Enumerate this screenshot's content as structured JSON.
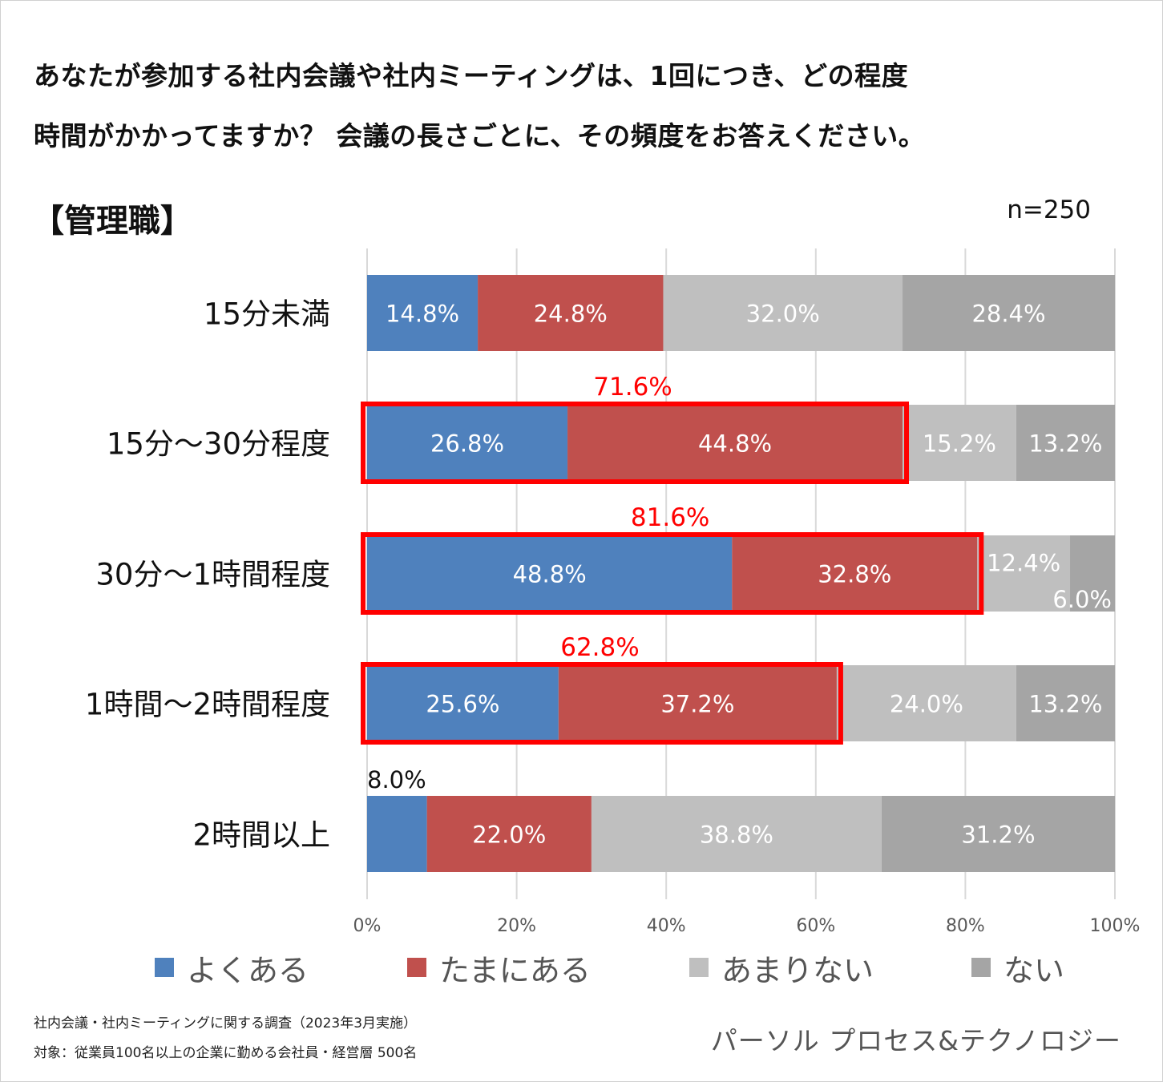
{
  "title": {
    "line1": "あなたが参加する社内会議や社内ミーティングは、1回につき、どの程度",
    "line2": "時間がかかってますか？ 会議の長さごとに、その頻度をお答えください。"
  },
  "segment_label": "【管理職】",
  "sample_size": "n=250",
  "colors": {
    "often": "#4f81bd",
    "sometimes": "#c0504d",
    "rarely": "#bfbfbf",
    "never": "#a5a5a5",
    "highlight": "#ff0000",
    "grid": "#d9d9d9"
  },
  "chart_data": {
    "type": "bar",
    "orientation": "horizontal",
    "stacked": true,
    "categories": [
      "15分未満",
      "15分～30分程度",
      "30分～1時間程度",
      "1時間～2時間程度",
      "2時間以上"
    ],
    "series": [
      {
        "name": "よくある",
        "values": [
          14.8,
          26.8,
          48.8,
          25.6,
          8.0
        ]
      },
      {
        "name": "たまにある",
        "values": [
          24.8,
          44.8,
          32.8,
          37.2,
          22.0
        ]
      },
      {
        "name": "あまりない",
        "values": [
          32.0,
          15.2,
          12.4,
          24.0,
          38.8
        ]
      },
      {
        "name": "ない",
        "values": [
          28.4,
          13.2,
          6.0,
          13.2,
          31.2
        ]
      }
    ],
    "highlights": [
      {
        "category": "15分～30分程度",
        "total": "71.6%"
      },
      {
        "category": "30分～1時間程度",
        "total": "81.6%"
      },
      {
        "category": "1時間～2時間程度",
        "total": "62.8%"
      }
    ],
    "xlim": [
      0,
      100
    ],
    "xticks": [
      "0%",
      "20%",
      "40%",
      "60%",
      "80%",
      "100%"
    ],
    "grid": true,
    "legend_position": "bottom"
  },
  "legend": {
    "items": [
      "よくある",
      "たまにある",
      "あまりない",
      "ない"
    ]
  },
  "footnote": {
    "line1": "社内会議・社内ミーティングに関する調査（2023年3月実施）",
    "line2": "対象：従業員100名以上の企業に勤める会社員・経営層 500名"
  },
  "brand": "パーソル プロセス&テクノロジー"
}
